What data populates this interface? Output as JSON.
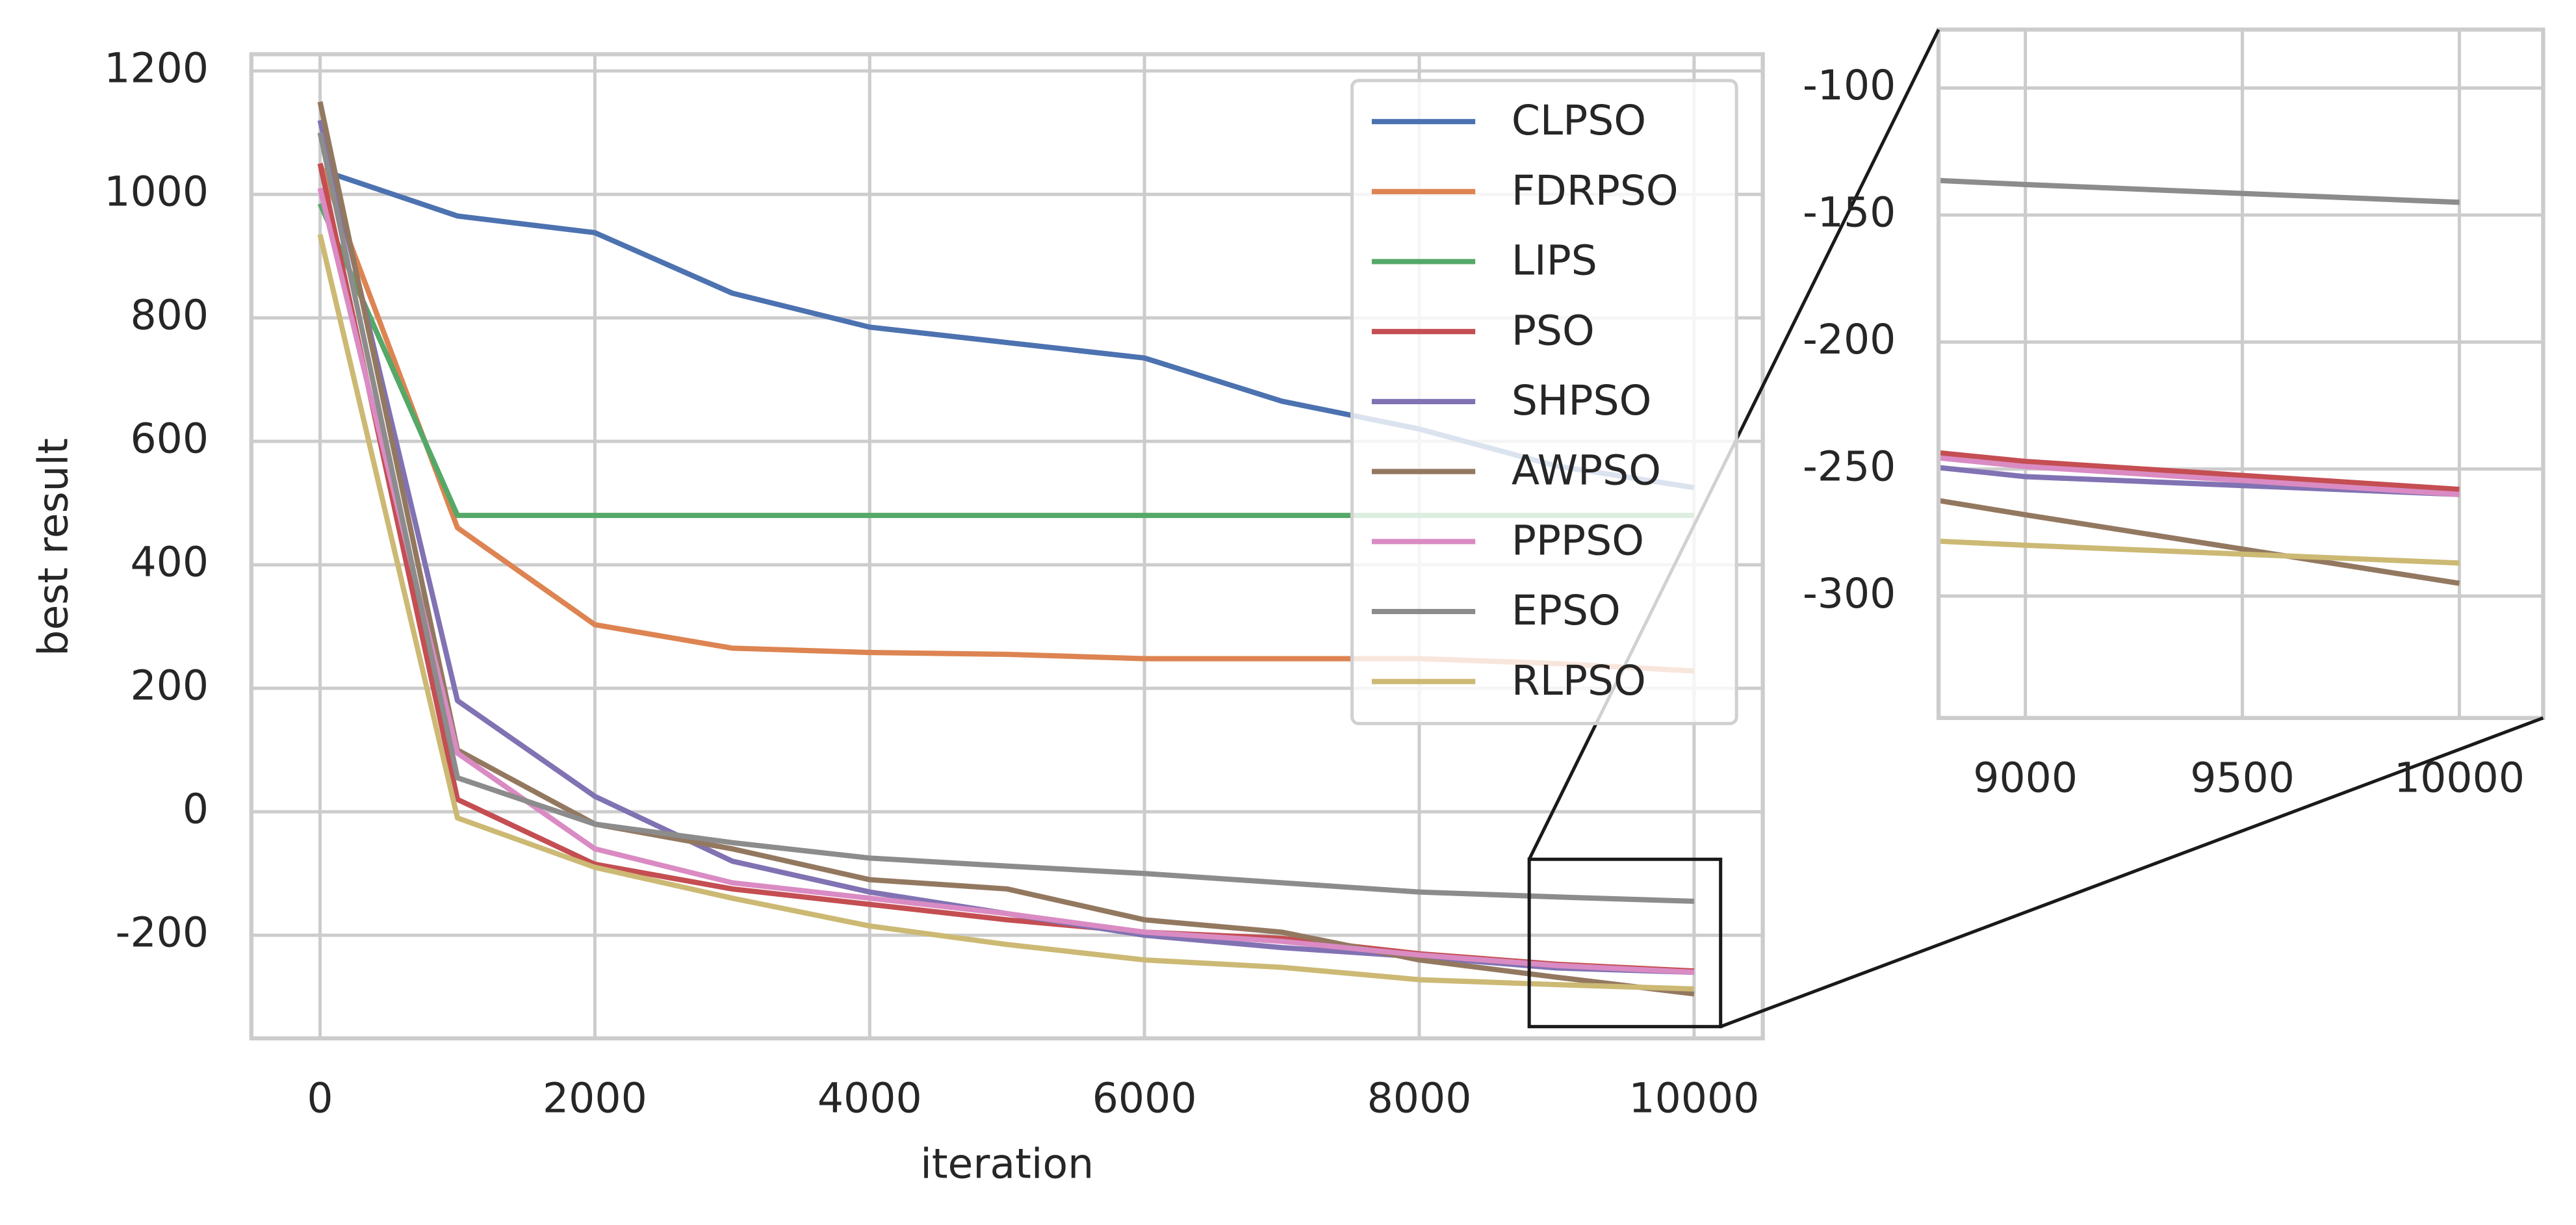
{
  "chart_data": {
    "type": "line",
    "xlabel": "iteration",
    "ylabel": "best result",
    "x": [
      0,
      1000,
      2000,
      3000,
      4000,
      5000,
      6000,
      7000,
      8000,
      9000,
      10000
    ],
    "series": [
      {
        "name": "CLPSO",
        "color": "#4c72b0",
        "values": [
          1040,
          965,
          938,
          840,
          785,
          760,
          735,
          665,
          620,
          560,
          525
        ]
      },
      {
        "name": "FDRPSO",
        "color": "#dd8452",
        "values": [
          1050,
          460,
          303,
          265,
          258,
          255,
          248,
          248,
          248,
          240,
          228
        ]
      },
      {
        "name": "LIPS",
        "color": "#55a868",
        "values": [
          985,
          480,
          480,
          480,
          480,
          480,
          480,
          480,
          480,
          480,
          480
        ]
      },
      {
        "name": "PSO",
        "color": "#c44e52",
        "values": [
          1050,
          20,
          -85,
          -125,
          -150,
          -175,
          -195,
          -205,
          -230,
          -247,
          -258
        ]
      },
      {
        "name": "SHPSO",
        "color": "#8172b3",
        "values": [
          1120,
          180,
          25,
          -80,
          -130,
          -165,
          -200,
          -220,
          -235,
          -253,
          -260
        ]
      },
      {
        "name": "AWPSO",
        "color": "#937860",
        "values": [
          1150,
          100,
          -20,
          -60,
          -110,
          -125,
          -175,
          -195,
          -240,
          -268,
          -295
        ]
      },
      {
        "name": "PPPSO",
        "color": "#da8bc3",
        "values": [
          1010,
          95,
          -60,
          -115,
          -140,
          -165,
          -195,
          -210,
          -232,
          -249,
          -260
        ]
      },
      {
        "name": "EPSO",
        "color": "#8c8c8c",
        "values": [
          1100,
          55,
          -20,
          -50,
          -75,
          -88,
          -100,
          -115,
          -130,
          -138,
          -145
        ]
      },
      {
        "name": "RLPSO",
        "color": "#ccb974",
        "values": [
          935,
          -10,
          -90,
          -140,
          -185,
          -215,
          -240,
          -252,
          -272,
          -280,
          -287
        ]
      }
    ],
    "xlim": [
      -500,
      10500
    ],
    "ylim": [
      -367,
      1227
    ],
    "xticks": [
      0,
      2000,
      4000,
      6000,
      8000,
      10000
    ],
    "yticks": [
      -200,
      0,
      200,
      400,
      600,
      800,
      1000,
      1200
    ],
    "grid": true,
    "legend": "upper right",
    "inset": {
      "xlim": [
        8800,
        10193
      ],
      "ylim": [
        -348,
        -77
      ],
      "xticks": [
        9000,
        9500,
        10000
      ],
      "yticks": [
        -100,
        -150,
        -200,
        -250,
        -300
      ]
    }
  }
}
